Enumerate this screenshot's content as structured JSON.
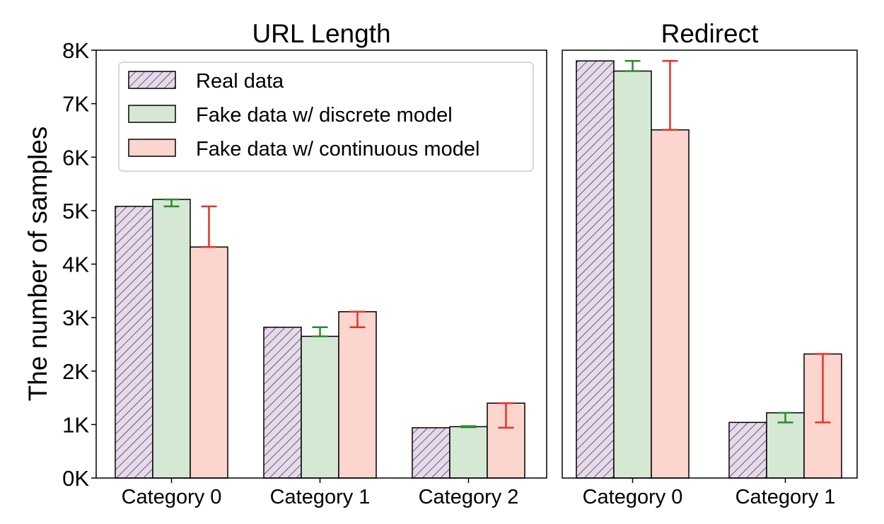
{
  "figure": {
    "ylabel": "The number of samples",
    "legend": {
      "placement": "top-right of first panel",
      "entries": [
        {
          "label": "Real data",
          "color": "#e5d9eb",
          "hatch": true
        },
        {
          "label": "Fake data w/ discrete model",
          "color": "#d5e8d4",
          "hatch": false
        },
        {
          "label": "Fake data w/ continuous model",
          "color": "#fdd5cf",
          "hatch": false
        }
      ]
    },
    "error_colors": {
      "discrete": "#2a8a2a",
      "continuous": "#e8302a"
    }
  },
  "chart_data": [
    {
      "type": "bar",
      "title": "URL Length",
      "categories": [
        "Category 0",
        "Category 1",
        "Category 2"
      ],
      "ylim": [
        0,
        8000
      ],
      "yticks": [
        0,
        1000,
        2000,
        3000,
        4000,
        5000,
        6000,
        7000,
        8000
      ],
      "yticklabels": [
        "0K",
        "1K",
        "2K",
        "3K",
        "4K",
        "5K",
        "6K",
        "7K",
        "8K"
      ],
      "grid": false,
      "series": [
        {
          "name": "Real data",
          "values": [
            5080,
            2820,
            940
          ]
        },
        {
          "name": "Fake data w/ discrete model",
          "values": [
            5210,
            2650,
            960
          ],
          "error_low": [
            5080,
            2650,
            950
          ],
          "error_high": [
            5210,
            2820,
            970
          ]
        },
        {
          "name": "Fake data w/ continuous model",
          "values": [
            4320,
            3110,
            1400
          ],
          "error_low": [
            4320,
            2820,
            940
          ],
          "error_high": [
            5080,
            3110,
            1400
          ]
        }
      ]
    },
    {
      "type": "bar",
      "title": "Redirect",
      "categories": [
        "Category 0",
        "Category 1"
      ],
      "ylim": [
        0,
        8000
      ],
      "grid": false,
      "series": [
        {
          "name": "Real data",
          "values": [
            7800,
            1040
          ]
        },
        {
          "name": "Fake data w/ discrete model",
          "values": [
            7610,
            1220
          ],
          "error_low": [
            7610,
            1040
          ],
          "error_high": [
            7800,
            1220
          ]
        },
        {
          "name": "Fake data w/ continuous model",
          "values": [
            6510,
            2320
          ],
          "error_low": [
            6510,
            1040
          ],
          "error_high": [
            7800,
            2320
          ]
        }
      ]
    }
  ]
}
